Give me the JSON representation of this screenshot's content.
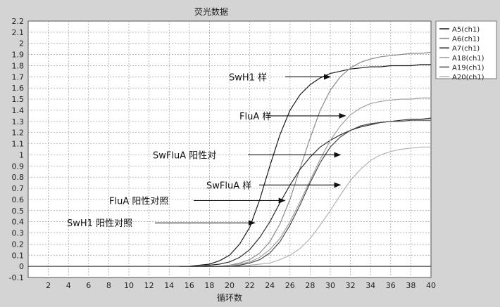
{
  "chart_data": {
    "type": "line",
    "title": "荧光数据",
    "xlabel": "循环数",
    "ylabel": "",
    "xlim": [
      0,
      40
    ],
    "ylim": [
      -0.1,
      2.2
    ],
    "grid": true,
    "x_ticks": [
      2,
      4,
      6,
      8,
      10,
      12,
      14,
      16,
      18,
      20,
      22,
      24,
      26,
      28,
      30,
      32,
      34,
      36,
      38,
      40
    ],
    "y_ticks": [
      -0.1,
      0,
      0.1,
      0.2,
      0.3,
      0.4,
      0.5,
      0.6,
      0.7,
      0.8,
      0.9,
      1,
      1.1,
      1.2,
      1.3,
      1.4,
      1.5,
      1.6,
      1.7,
      1.8,
      1.9,
      2,
      2.1,
      2.2
    ],
    "legend_position": "right",
    "series": [
      {
        "name": "A5(ch1)",
        "color": "#1a1a1a",
        "x": [
          15,
          16,
          17,
          18,
          19,
          20,
          21,
          22,
          23,
          24,
          25,
          26,
          27,
          28,
          29,
          30,
          31,
          32,
          33,
          34,
          35,
          36,
          37,
          38,
          39,
          40
        ],
        "y": [
          0,
          0,
          0.01,
          0.02,
          0.05,
          0.1,
          0.2,
          0.35,
          0.6,
          0.9,
          1.18,
          1.4,
          1.54,
          1.63,
          1.69,
          1.73,
          1.75,
          1.77,
          1.78,
          1.79,
          1.79,
          1.8,
          1.8,
          1.8,
          1.81,
          1.81
        ]
      },
      {
        "name": "A6(ch1)",
        "color": "#8a8a8a",
        "x": [
          15,
          16,
          17,
          18,
          19,
          20,
          21,
          22,
          23,
          24,
          25,
          26,
          27,
          28,
          29,
          30,
          31,
          32,
          33,
          34,
          35,
          36,
          37,
          38,
          39,
          40
        ],
        "y": [
          0,
          0,
          0,
          0,
          0,
          0.01,
          0.03,
          0.06,
          0.12,
          0.22,
          0.38,
          0.6,
          0.88,
          1.15,
          1.4,
          1.58,
          1.7,
          1.78,
          1.83,
          1.86,
          1.88,
          1.89,
          1.9,
          1.91,
          1.91,
          1.92
        ]
      },
      {
        "name": "A7(ch1)",
        "color": "#2a2a2a",
        "x": [
          15,
          16,
          17,
          18,
          19,
          20,
          21,
          22,
          23,
          24,
          25,
          26,
          27,
          28,
          29,
          30,
          31,
          32,
          33,
          34,
          35,
          36,
          37,
          38,
          39,
          40
        ],
        "y": [
          0,
          0,
          0,
          0.01,
          0.02,
          0.04,
          0.08,
          0.15,
          0.26,
          0.4,
          0.57,
          0.73,
          0.87,
          0.98,
          1.07,
          1.13,
          1.18,
          1.22,
          1.25,
          1.27,
          1.29,
          1.3,
          1.31,
          1.32,
          1.32,
          1.33
        ]
      },
      {
        "name": "A18(ch1)",
        "color": "#a0a0a0",
        "x": [
          15,
          16,
          17,
          18,
          19,
          20,
          21,
          22,
          23,
          24,
          25,
          26,
          27,
          28,
          29,
          30,
          31,
          32,
          33,
          34,
          35,
          36,
          37,
          38,
          39,
          40
        ],
        "y": [
          0,
          0,
          0,
          0,
          0,
          0.01,
          0.02,
          0.04,
          0.08,
          0.15,
          0.25,
          0.4,
          0.58,
          0.77,
          0.96,
          1.13,
          1.26,
          1.36,
          1.42,
          1.46,
          1.48,
          1.49,
          1.5,
          1.5,
          1.51,
          1.51
        ]
      },
      {
        "name": "A19(ch1)",
        "color": "#4a4a4a",
        "x": [
          15,
          16,
          17,
          18,
          19,
          20,
          21,
          22,
          23,
          24,
          25,
          26,
          27,
          28,
          29,
          30,
          31,
          32,
          33,
          34,
          35,
          36,
          37,
          38,
          39,
          40
        ],
        "y": [
          0,
          0,
          0,
          0,
          0,
          0,
          0.01,
          0.03,
          0.06,
          0.12,
          0.22,
          0.37,
          0.55,
          0.75,
          0.93,
          1.07,
          1.16,
          1.22,
          1.26,
          1.28,
          1.29,
          1.3,
          1.3,
          1.31,
          1.31,
          1.31
        ]
      },
      {
        "name": "A20(ch1)",
        "color": "#b4b4b4",
        "x": [
          15,
          16,
          17,
          18,
          19,
          20,
          21,
          22,
          23,
          24,
          25,
          26,
          27,
          28,
          29,
          30,
          31,
          32,
          33,
          34,
          35,
          36,
          37,
          38,
          39,
          40
        ],
        "y": [
          0,
          0,
          0,
          0,
          0,
          0,
          0,
          0.01,
          0.02,
          0.03,
          0.06,
          0.1,
          0.16,
          0.25,
          0.37,
          0.5,
          0.64,
          0.77,
          0.87,
          0.95,
          1,
          1.03,
          1.05,
          1.06,
          1.07,
          1.07
        ]
      }
    ],
    "annotations": [
      {
        "text": "SwH1 样",
        "x": 30,
        "y": 1.7
      },
      {
        "text": "FluA 样",
        "x": 31.5,
        "y": 1.35
      },
      {
        "text": "SwFluA 阳性对",
        "x": 31,
        "y": 1.0
      },
      {
        "text": "SwFluA 样",
        "x": 31,
        "y": 0.73
      },
      {
        "text": "FluA 阳性对照",
        "x": 25.5,
        "y": 0.59
      },
      {
        "text": "SwH1 阳性对照",
        "x": 22.5,
        "y": 0.39
      }
    ]
  }
}
